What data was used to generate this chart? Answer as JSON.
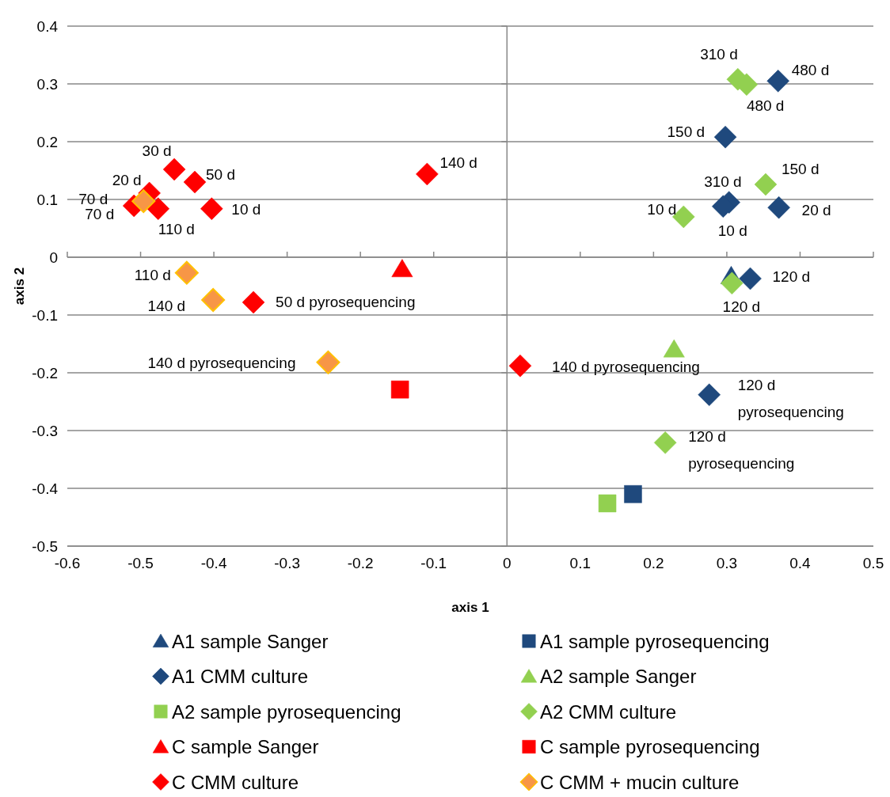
{
  "chart_data": {
    "type": "scatter",
    "xlabel": "axis 1",
    "ylabel": "axis 2",
    "xlim": [
      -0.6,
      0.5
    ],
    "ylim": [
      -0.5,
      0.4
    ],
    "xticks": [
      -0.6,
      -0.5,
      -0.4,
      -0.3,
      -0.2,
      -0.1,
      0,
      0.1,
      0.2,
      0.3,
      0.4,
      0.5
    ],
    "yticks": [
      -0.5,
      -0.4,
      -0.3,
      -0.2,
      -0.1,
      0,
      0.1,
      0.2,
      0.3,
      0.4
    ],
    "grid": "y",
    "legend": "bottom",
    "ref_lines": [
      {
        "axis": "x",
        "value": 0,
        "color": "#888888"
      }
    ],
    "series": [
      {
        "name": "A1 sample Sanger",
        "color": "#1f497d",
        "marker": "triangle",
        "x": [
          0.306
        ],
        "values": [
          -0.032
        ]
      },
      {
        "name": "A1 sample pyrosequencing",
        "color": "#1f497d",
        "marker": "square",
        "x": [
          0.172
        ],
        "values": [
          -0.41
        ]
      },
      {
        "name": "A1 CMM culture",
        "color": "#1f497d",
        "marker": "diamond",
        "x": [
          0.37,
          0.298,
          0.303,
          0.295,
          0.371,
          0.332,
          0.276
        ],
        "values": [
          0.305,
          0.208,
          0.095,
          0.088,
          0.086,
          -0.037,
          -0.238
        ]
      },
      {
        "name": "A2 sample Sanger",
        "color": "#92d050",
        "marker": "triangle",
        "x": [
          0.228
        ],
        "values": [
          -0.159
        ]
      },
      {
        "name": "A2 sample pyrosequencing",
        "color": "#92d050",
        "marker": "square",
        "x": [
          0.137
        ],
        "values": [
          -0.426
        ]
      },
      {
        "name": "A2 CMM culture",
        "color": "#92d050",
        "marker": "diamond",
        "x": [
          0.315,
          0.327,
          0.353,
          0.241,
          0.307,
          0.216
        ],
        "values": [
          0.308,
          0.299,
          0.126,
          0.07,
          -0.045,
          -0.321
        ]
      },
      {
        "name": "C sample Sanger",
        "color": "#ff0000",
        "marker": "triangle",
        "x": [
          -0.143
        ],
        "values": [
          -0.02
        ]
      },
      {
        "name": "C sample pyrosequencing",
        "color": "#ff0000",
        "marker": "square",
        "x": [
          -0.146
        ],
        "values": [
          -0.229
        ]
      },
      {
        "name": "C CMM culture",
        "color": "#ff0000",
        "marker": "diamond",
        "x": [
          -0.454,
          -0.426,
          -0.488,
          -0.509,
          -0.476,
          -0.403,
          -0.109,
          -0.346,
          0.018
        ],
        "values": [
          0.152,
          0.13,
          0.111,
          0.089,
          0.084,
          0.084,
          0.144,
          -0.078,
          -0.188
        ]
      },
      {
        "name": "C CMM + mucin culture",
        "color": "#f79646",
        "marker": "diamond",
        "x": [
          -0.496,
          -0.437,
          -0.401,
          -0.244
        ],
        "values": [
          0.097,
          -0.027,
          -0.074,
          -0.182
        ]
      }
    ],
    "annotations": [
      {
        "text": "480 d",
        "x": 0.37,
        "y": 0.305
      },
      {
        "text": "150 d",
        "x": 0.298,
        "y": 0.208
      },
      {
        "text": "310 d",
        "x": 0.303,
        "y": 0.095
      },
      {
        "text": "10 d",
        "x": 0.295,
        "y": 0.088
      },
      {
        "text": "20 d",
        "x": 0.371,
        "y": 0.086
      },
      {
        "text": "120 d",
        "x": 0.332,
        "y": -0.037
      },
      {
        "text": "120 d pyrosequencing",
        "x": 0.276,
        "y": -0.238
      },
      {
        "text": "310 d",
        "x": 0.315,
        "y": 0.308
      },
      {
        "text": "480 d",
        "x": 0.327,
        "y": 0.299
      },
      {
        "text": "150 d",
        "x": 0.353,
        "y": 0.126
      },
      {
        "text": "10 d",
        "x": 0.241,
        "y": 0.07
      },
      {
        "text": "120 d",
        "x": 0.307,
        "y": -0.045
      },
      {
        "text": "120 d pyrosequencing",
        "x": 0.216,
        "y": -0.321
      },
      {
        "text": "30 d",
        "x": -0.454,
        "y": 0.152
      },
      {
        "text": "50 d",
        "x": -0.426,
        "y": 0.13
      },
      {
        "text": "20 d",
        "x": -0.488,
        "y": 0.111
      },
      {
        "text": "70 d",
        "x": -0.509,
        "y": 0.089
      },
      {
        "text": "110 d",
        "x": -0.476,
        "y": 0.084
      },
      {
        "text": "10 d",
        "x": -0.403,
        "y": 0.084
      },
      {
        "text": "140 d",
        "x": -0.109,
        "y": 0.144
      },
      {
        "text": "50 d pyrosequencing",
        "x": -0.346,
        "y": -0.078
      },
      {
        "text": "140 d pyrosequencing",
        "x": 0.018,
        "y": -0.188
      },
      {
        "text": "70 d",
        "x": -0.496,
        "y": 0.097
      },
      {
        "text": "110 d",
        "x": -0.437,
        "y": -0.027
      },
      {
        "text": "140 d",
        "x": -0.401,
        "y": -0.074
      },
      {
        "text": "140 d pyrosequencing",
        "x": -0.244,
        "y": -0.182
      }
    ]
  }
}
